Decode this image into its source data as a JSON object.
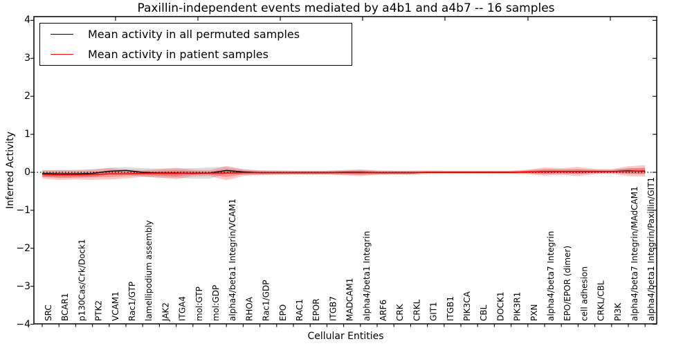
{
  "title": "Paxillin-independent events mediated by a4b1 and a4b7 -- 16 samples",
  "legend": {
    "items": [
      {
        "label": "Mean activity in all permuted samples",
        "color": "#000000"
      },
      {
        "label": "Mean activity in patient samples",
        "color": "#ff0000"
      }
    ]
  },
  "chart_data": {
    "type": "line",
    "title": "Paxillin-independent events mediated by a4b1 and a4b7 -- 16 samples",
    "xlabel": "Cellular Entities",
    "ylabel": "Inferred Activity",
    "ylim": [
      -4,
      4
    ],
    "yticklabels": [
      "4",
      "3",
      "2",
      "1",
      "0",
      "−1",
      "−2",
      "−3",
      "−4"
    ],
    "grid": false,
    "legend_position": "upper left",
    "zero_reference_line": {
      "value": 0,
      "style": "dotted",
      "color": "#000000"
    },
    "categories": [
      "SRC",
      "BCAR1",
      "p130Cas/Crk/Dock1",
      "PTK2",
      "VCAM1",
      "Rac1/GTP",
      "lamellipodium assembly",
      "JAK2",
      "ITGA4",
      "mol:GTP",
      "mol:GDP",
      "alpha4/beta1 Integrin/VCAM1",
      "RHOA",
      "Rac1/GDP",
      "EPO",
      "RAC1",
      "EPOR",
      "ITGB7",
      "MADCAM1",
      "alpha4/beta1 Integrin",
      "ARF6",
      "CRK",
      "CRKL",
      "GIT1",
      "ITGB1",
      "PIK3CA",
      "CBL",
      "DOCK1",
      "PIK3R1",
      "PXN",
      "alpha4/beta7 Integrin",
      "EPO/EPOR (dimer)",
      "cell adhesion",
      "CRKL/CBL",
      "PI3K",
      "alpha4/beta7 Integrin/MAdCAM1",
      "alpha4/beta1 Integrin/Paxillin/GIT1"
    ],
    "series": [
      {
        "name": "Mean activity in all permuted samples",
        "color": "#000000",
        "band_color": "#000000",
        "band_opacity": 0.13,
        "values": [
          -0.03,
          -0.04,
          -0.04,
          -0.03,
          0.03,
          0.05,
          0.0,
          -0.02,
          -0.02,
          -0.03,
          -0.02,
          0.05,
          0.01,
          -0.01,
          -0.01,
          -0.01,
          -0.01,
          -0.01,
          0.0,
          0.0,
          -0.01,
          -0.01,
          -0.01,
          0.0,
          0.0,
          0.0,
          0.0,
          0.0,
          0.0,
          0.01,
          0.02,
          0.02,
          0.02,
          0.02,
          0.02,
          0.04,
          0.03
        ],
        "band_halfwidth": [
          0.09,
          0.1,
          0.11,
          0.1,
          0.09,
          0.09,
          0.11,
          0.12,
          0.12,
          0.14,
          0.15,
          0.09,
          0.07,
          0.06,
          0.06,
          0.05,
          0.05,
          0.05,
          0.05,
          0.06,
          0.05,
          0.05,
          0.05,
          0.05,
          0.04,
          0.04,
          0.04,
          0.04,
          0.04,
          0.05,
          0.06,
          0.06,
          0.06,
          0.05,
          0.05,
          0.07,
          0.08
        ]
      },
      {
        "name": "Mean activity in patient samples",
        "color": "#ff0000",
        "band_color": "#ff0000",
        "band_opacity": 0.22,
        "values": [
          -0.06,
          -0.07,
          -0.07,
          -0.06,
          -0.04,
          -0.04,
          -0.03,
          -0.03,
          -0.03,
          -0.02,
          -0.02,
          -0.02,
          -0.01,
          -0.01,
          -0.01,
          -0.01,
          -0.01,
          -0.01,
          -0.01,
          -0.01,
          -0.01,
          -0.01,
          -0.01,
          0.0,
          0.0,
          0.0,
          0.0,
          0.0,
          0.0,
          0.01,
          0.02,
          0.02,
          0.02,
          0.02,
          0.02,
          0.03,
          0.04
        ],
        "band_halfwidth": [
          0.11,
          0.13,
          0.12,
          0.14,
          0.15,
          0.12,
          0.09,
          0.11,
          0.15,
          0.09,
          0.08,
          0.19,
          0.09,
          0.06,
          0.05,
          0.05,
          0.05,
          0.05,
          0.07,
          0.09,
          0.06,
          0.05,
          0.05,
          0.04,
          0.04,
          0.04,
          0.04,
          0.04,
          0.04,
          0.06,
          0.11,
          0.09,
          0.12,
          0.07,
          0.06,
          0.13,
          0.15
        ],
        "band_inner_halfwidth": [
          0.06,
          0.07,
          0.06,
          0.07,
          0.08,
          0.06,
          0.05,
          0.06,
          0.08,
          0.05,
          0.04,
          0.1,
          0.05,
          0.03,
          0.03,
          0.03,
          0.03,
          0.03,
          0.04,
          0.05,
          0.03,
          0.03,
          0.03,
          0.02,
          0.02,
          0.02,
          0.02,
          0.02,
          0.02,
          0.03,
          0.06,
          0.05,
          0.06,
          0.04,
          0.03,
          0.07,
          0.08
        ]
      }
    ]
  }
}
